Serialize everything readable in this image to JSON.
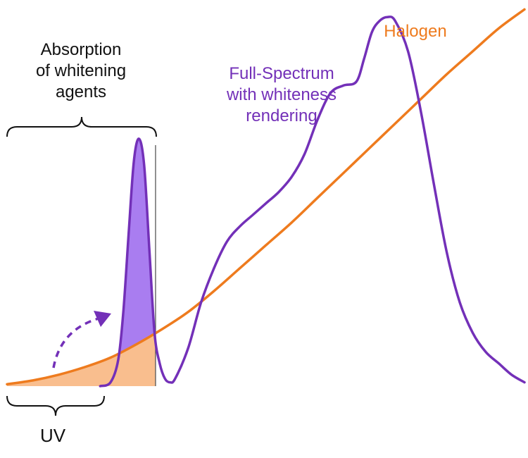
{
  "colors": {
    "halogen": "#EE7B1E",
    "halogen_fill": "#F9BE8E",
    "full_spectrum": "#7330B8",
    "full_spectrum_fill": "#A97DF0",
    "text": "#111111",
    "guide": "#555555"
  },
  "annotations": {
    "absorption": [
      "Absorption",
      "of whitening",
      "agents"
    ],
    "uv": "UV"
  },
  "chart_data": {
    "type": "line",
    "title": "",
    "xlabel": "",
    "ylabel": "",
    "xlim": [
      0,
      100
    ],
    "ylim": [
      0,
      100
    ],
    "grid": false,
    "legend": "none",
    "series": [
      {
        "name": "Halogen",
        "color": "#EE7B1E",
        "x": [
          0,
          5,
          10,
          15,
          20,
          25,
          30,
          35,
          40,
          45,
          50,
          55,
          60,
          65,
          70,
          75,
          80,
          85,
          90,
          95,
          100
        ],
        "y": [
          0.5,
          1.5,
          3,
          5,
          7.5,
          11,
          15,
          19.5,
          25,
          31,
          37,
          43,
          49.5,
          56,
          62.5,
          69,
          75.5,
          82,
          88,
          94,
          99
        ]
      },
      {
        "name": "Full-Spectrum with whiteness rendering",
        "color": "#7330B8",
        "x": [
          18,
          20,
          21.5,
          22.5,
          23.5,
          24.5,
          25.5,
          26.5,
          27.5,
          28.5,
          29.5,
          30.5,
          31.5,
          32.5,
          35,
          37.5,
          40,
          42.5,
          45,
          47.5,
          50,
          52.5,
          55,
          57.5,
          60,
          62.5,
          65,
          67.5,
          69,
          70.5,
          72,
          73.5,
          75,
          77.5,
          80,
          82.5,
          85,
          87.5,
          90,
          92.5,
          95,
          97.5,
          100
        ],
        "y": [
          0,
          1,
          7,
          20,
          40,
          59,
          65,
          58,
          36,
          14,
          6,
          2,
          1,
          2,
          10,
          22,
          31,
          38,
          42,
          45,
          48,
          51,
          55,
          61,
          70,
          77,
          79,
          80,
          86,
          93,
          96,
          97,
          96,
          88,
          72,
          53,
          35,
          22,
          14,
          9,
          6,
          3,
          1
        ]
      }
    ]
  }
}
